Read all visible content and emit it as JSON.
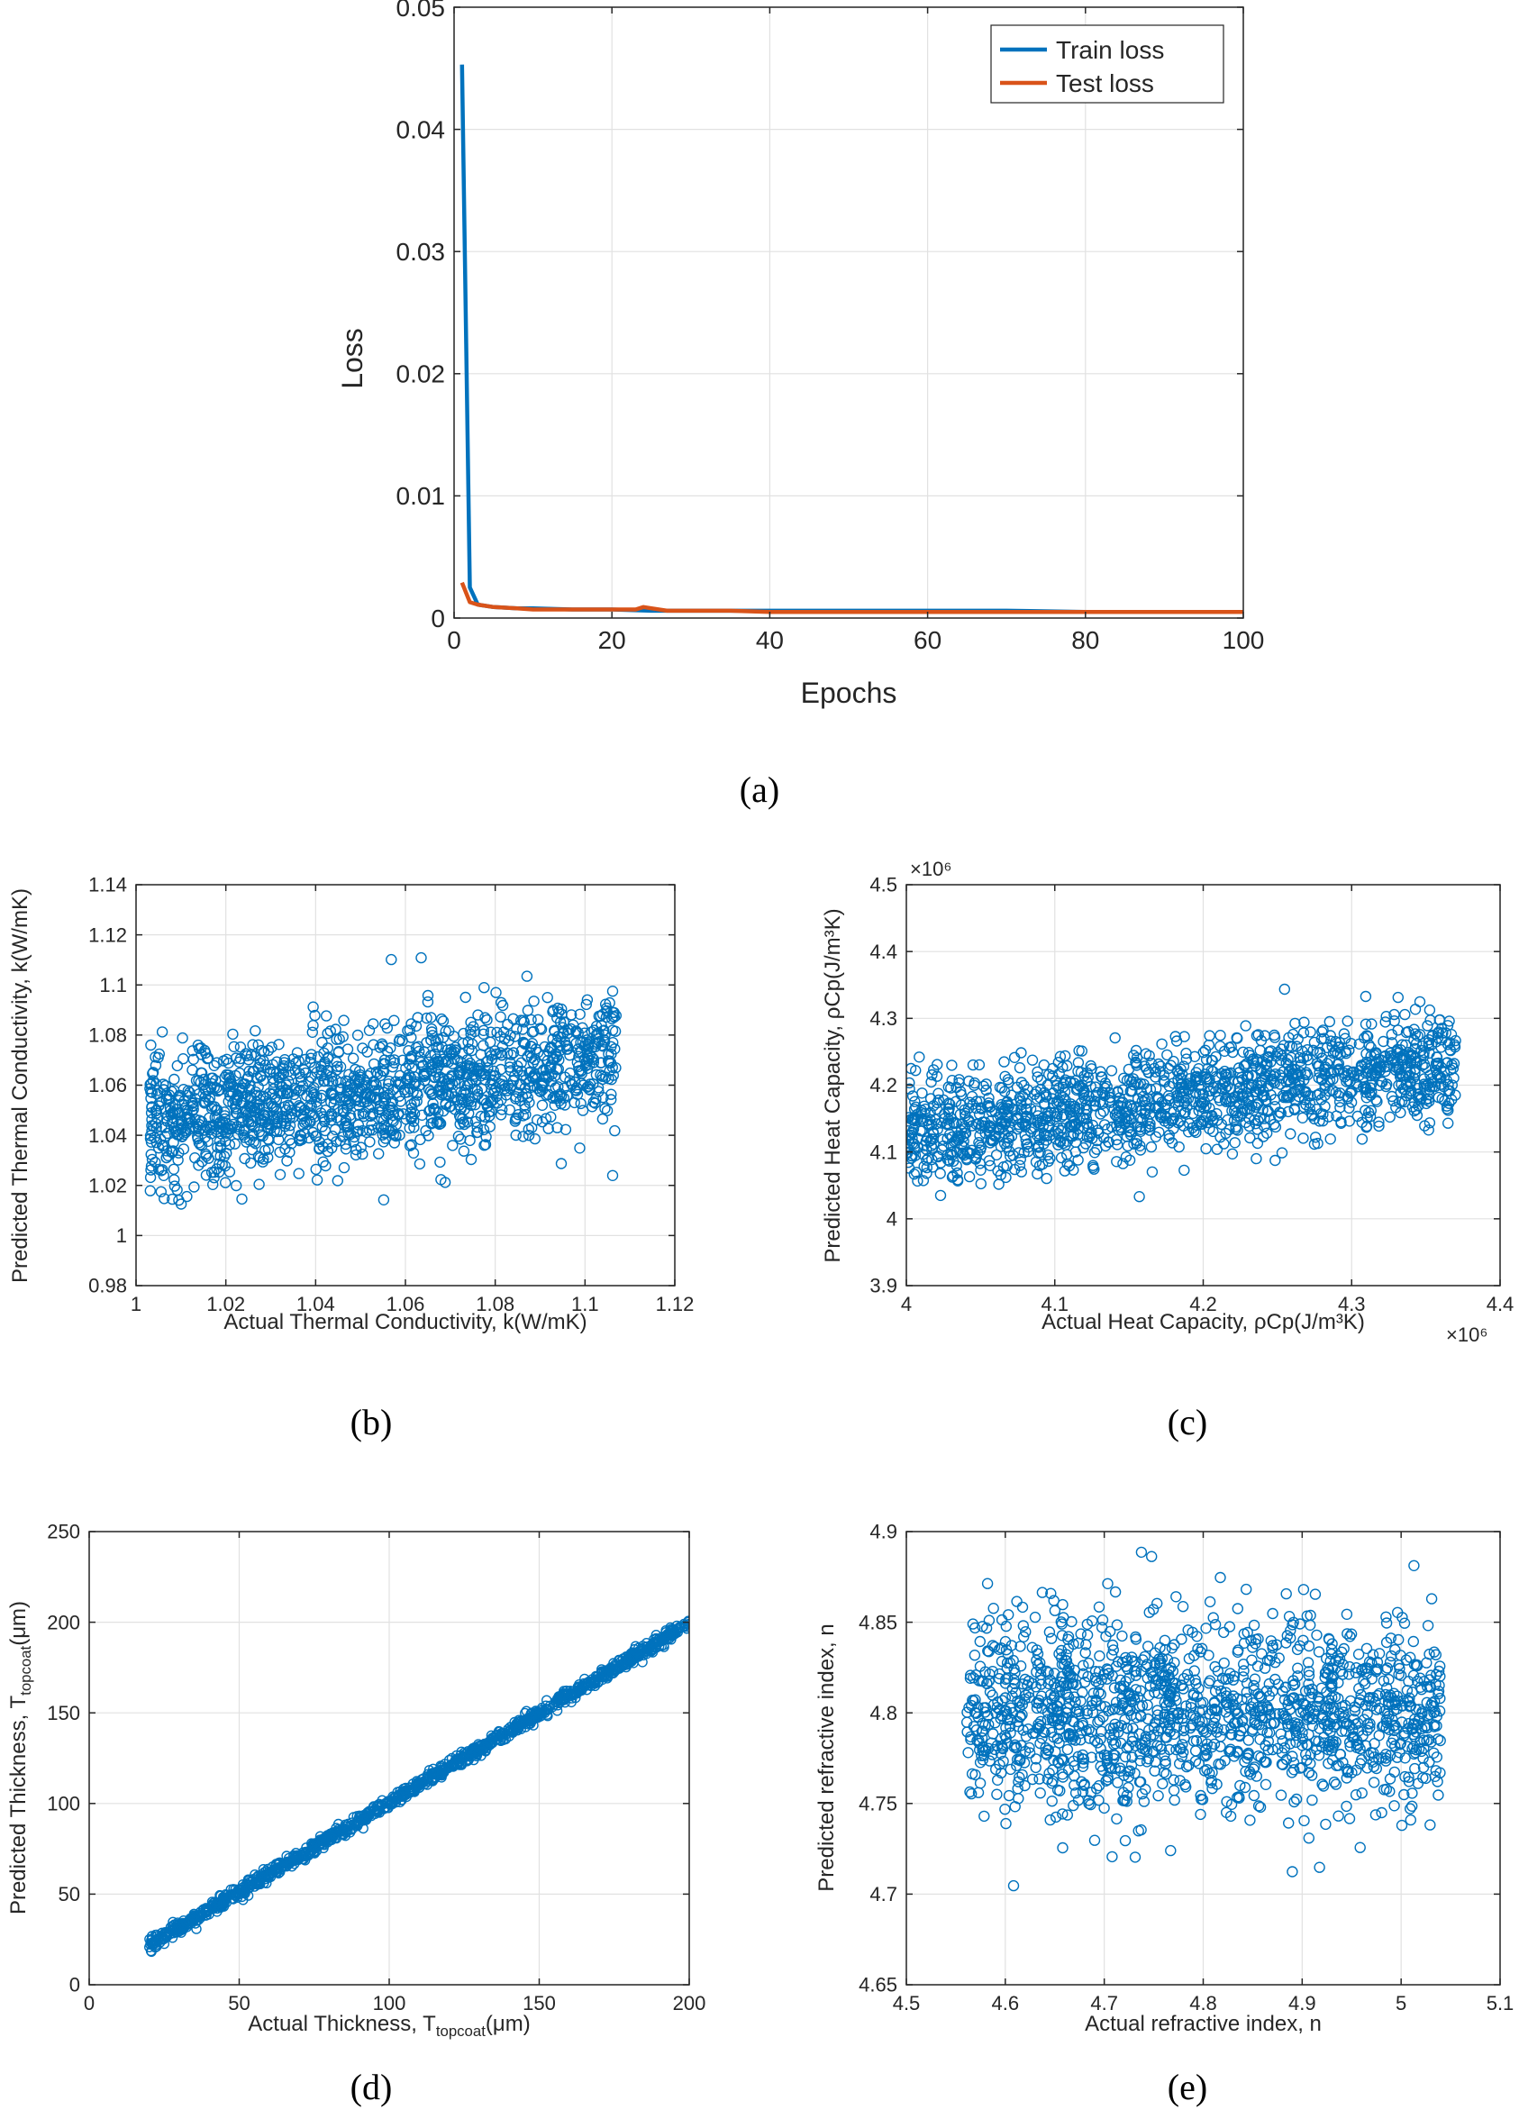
{
  "colors": {
    "blue": "#0072BD",
    "orange": "#D95319",
    "grid": "#e1e1e1",
    "axis": "#262626"
  },
  "chart_data": [
    {
      "id": "a",
      "caption": "(a)",
      "type": "line",
      "xlabel": "Epochs",
      "ylabel": "Loss",
      "xlim": [
        0,
        100
      ],
      "ylim": [
        0,
        0.05
      ],
      "xticks": [
        0,
        20,
        40,
        60,
        80,
        100
      ],
      "yticks": [
        0,
        0.01,
        0.02,
        0.03,
        0.04,
        0.05
      ],
      "xticklabels": [
        "0",
        "20",
        "40",
        "60",
        "80",
        "100"
      ],
      "yticklabels": [
        "0",
        "0.01",
        "0.02",
        "0.03",
        "0.04",
        "0.05"
      ],
      "grid": true,
      "legend": "top-right",
      "series": [
        {
          "name": "Train loss",
          "color": "#0072BD",
          "x": [
            1,
            2,
            3,
            5,
            8,
            10,
            15,
            20,
            25,
            30,
            40,
            50,
            60,
            70,
            80,
            90,
            100
          ],
          "y": [
            0.0453,
            0.0025,
            0.0011,
            0.0009,
            0.0008,
            0.0008,
            0.0007,
            0.0007,
            0.0006,
            0.0006,
            0.0006,
            0.0006,
            0.0006,
            0.0006,
            0.0005,
            0.0005,
            0.0005
          ]
        },
        {
          "name": "Test loss",
          "color": "#D95319",
          "x": [
            1,
            2,
            3,
            5,
            8,
            10,
            15,
            20,
            23,
            24,
            25,
            27,
            30,
            35,
            40,
            50,
            60,
            70,
            80,
            90,
            100
          ],
          "y": [
            0.0029,
            0.0013,
            0.0011,
            0.0009,
            0.0008,
            0.0007,
            0.0007,
            0.0007,
            0.0007,
            0.0009,
            0.0008,
            0.0006,
            0.0006,
            0.0006,
            0.0005,
            0.0005,
            0.0005,
            0.0005,
            0.0005,
            0.0005,
            0.0005
          ]
        }
      ]
    },
    {
      "id": "b",
      "caption": "(b)",
      "type": "scatter",
      "xlabel": "Actual Thermal Conductivity, k(W/mK)",
      "ylabel": "Predicted Thermal Conductivity, k(W/mK)",
      "xlim": [
        1,
        1.12
      ],
      "ylim": [
        0.98,
        1.14
      ],
      "xticks": [
        1,
        1.02,
        1.04,
        1.06,
        1.08,
        1.1,
        1.12
      ],
      "yticks": [
        0.98,
        1,
        1.02,
        1.04,
        1.06,
        1.08,
        1.1,
        1.12,
        1.14
      ],
      "xticklabels": [
        "1",
        "1.02",
        "1.04",
        "1.06",
        "1.08",
        "1.1",
        "1.12"
      ],
      "yticklabels": [
        "0.98",
        "1",
        "1.02",
        "1.04",
        "1.06",
        "1.08",
        "1.1",
        "1.12",
        "1.14"
      ],
      "grid": true,
      "trend": {
        "x_range": [
          1.003,
          1.107
        ],
        "y_start": 1.045,
        "y_end": 1.072,
        "spread": 0.018
      },
      "n_points": 1500
    },
    {
      "id": "c",
      "caption": "(c)",
      "type": "scatter",
      "xlabel": "Actual Heat Capacity, ρCp(J/m³K)",
      "ylabel": "Predicted Heat Capacity, ρCp(J/m³K)",
      "x_exponent_label": "×10⁶",
      "y_exponent_label": "×10⁶",
      "xlim": [
        4.0,
        4.4
      ],
      "ylim": [
        3.9,
        4.5
      ],
      "xticks": [
        4,
        4.1,
        4.2,
        4.3,
        4.4
      ],
      "yticks": [
        3.9,
        4,
        4.1,
        4.2,
        4.3,
        4.4,
        4.5
      ],
      "xticklabels": [
        "4",
        "4.1",
        "4.2",
        "4.3",
        "4.4"
      ],
      "yticklabels": [
        "3.9",
        "4",
        "4.1",
        "4.2",
        "4.3",
        "4.4",
        "4.5"
      ],
      "grid": true,
      "trend": {
        "x_range": [
          4.0,
          4.37
        ],
        "y_start": 4.125,
        "y_end": 4.235,
        "spread": 0.055
      },
      "n_points": 1500
    },
    {
      "id": "d",
      "caption": "(d)",
      "type": "scatter",
      "xlabel": "Actual Thickness, T",
      "xlabel_sub": "topcoat",
      "xlabel_tail": "(μm)",
      "ylabel": "Predicted Thickness, T",
      "ylabel_sub": "topcoat",
      "ylabel_tail": "(μm)",
      "xlim": [
        0,
        200
      ],
      "ylim": [
        0,
        250
      ],
      "xticks": [
        0,
        50,
        100,
        150,
        200
      ],
      "yticks": [
        0,
        50,
        100,
        150,
        200,
        250
      ],
      "xticklabels": [
        "0",
        "50",
        "100",
        "150",
        "200"
      ],
      "yticklabels": [
        "0",
        "50",
        "100",
        "150",
        "200",
        "250"
      ],
      "grid": true,
      "trend": {
        "x_range": [
          20,
          200
        ],
        "y_start": 22,
        "y_end": 199,
        "spread": 2.5
      },
      "n_points": 1200
    },
    {
      "id": "e",
      "caption": "(e)",
      "type": "scatter",
      "xlabel": "Actual refractive index, n",
      "ylabel": "Predicted refractive index, n",
      "xlim": [
        4.5,
        5.1
      ],
      "ylim": [
        4.65,
        4.9
      ],
      "xticks": [
        4.5,
        4.6,
        4.7,
        4.8,
        4.9,
        5,
        5.1
      ],
      "yticks": [
        4.65,
        4.7,
        4.75,
        4.8,
        4.85,
        4.9
      ],
      "xticklabels": [
        "4.5",
        "4.6",
        "4.7",
        "4.8",
        "4.9",
        "5",
        "5.1"
      ],
      "yticklabels": [
        "4.65",
        "4.7",
        "4.75",
        "4.8",
        "4.85",
        "4.9"
      ],
      "grid": true,
      "trend": {
        "x_range": [
          4.56,
          5.04
        ],
        "y_start": 4.8,
        "y_end": 4.8,
        "spread": 0.035
      },
      "n_points": 1500
    }
  ]
}
